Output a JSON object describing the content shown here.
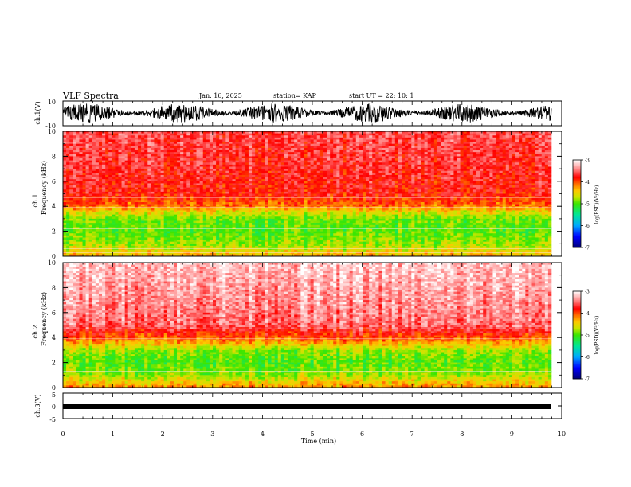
{
  "header": {
    "title": "VLF Spectra",
    "date": "Jan. 16, 2025",
    "station": "station= KAP",
    "start": "start  UT =   22: 10: 1"
  },
  "colors": {
    "spec_low": "#0000aa",
    "spec_mid": "#00ee00",
    "spec_high": "#ff0000",
    "spec_max": "#ffffff",
    "trace": "#000000"
  },
  "chart_data": [
    {
      "type": "line",
      "ylabel": "ch.1(V)",
      "ylim": [
        -10,
        10
      ],
      "yticks": [
        "10",
        "-10"
      ],
      "xlim": [
        0,
        10
      ],
      "description_of_signal": "noise"
    },
    {
      "type": "heatmap",
      "ylabel": "ch.1",
      "ylabel2": "Frequency  (kHz)",
      "ylim": [
        0,
        10
      ],
      "yticks": [
        "0",
        "2",
        "4",
        "6",
        "8",
        "10"
      ],
      "xlim": [
        0,
        10
      ],
      "colorbar": {
        "label": "log(PSD)(V²/Hz)",
        "range": [
          -7,
          -3
        ],
        "ticks": [
          "-3",
          "-4",
          "-5",
          "-6",
          "-7"
        ]
      },
      "band_profile": [
        {
          "f": 0.0,
          "v": -4.3
        },
        {
          "f": 0.5,
          "v": -4.6
        },
        {
          "f": 1.0,
          "v": -4.8
        },
        {
          "f": 2.0,
          "v": -5.0
        },
        {
          "f": 3.0,
          "v": -4.9
        },
        {
          "f": 3.6,
          "v": -4.5
        },
        {
          "f": 4.0,
          "v": -4.1
        },
        {
          "f": 5.0,
          "v": -3.8
        },
        {
          "f": 10.0,
          "v": -3.6
        }
      ]
    },
    {
      "type": "heatmap",
      "ylabel": "ch.2",
      "ylabel2": "Frequency  (kHz)",
      "ylim": [
        0,
        10
      ],
      "yticks": [
        "0",
        "2",
        "4",
        "6",
        "8",
        "10"
      ],
      "xlim": [
        0,
        10
      ],
      "colorbar": {
        "label": "log(PSD)(V²/Hz)",
        "range": [
          -7,
          -3
        ],
        "ticks": [
          "-3",
          "-4",
          "-5",
          "-6",
          "-7"
        ]
      },
      "band_profile": [
        {
          "f": 0.0,
          "v": -4.2
        },
        {
          "f": 0.5,
          "v": -4.5
        },
        {
          "f": 1.0,
          "v": -4.8
        },
        {
          "f": 2.0,
          "v": -5.0
        },
        {
          "f": 3.0,
          "v": -4.8
        },
        {
          "f": 3.6,
          "v": -4.3
        },
        {
          "f": 4.0,
          "v": -4.0
        },
        {
          "f": 5.0,
          "v": -3.5
        },
        {
          "f": 10.0,
          "v": -3.2
        }
      ]
    },
    {
      "type": "line",
      "ylabel": "ch.3(V)",
      "ylim": [
        -5,
        5
      ],
      "yticks": [
        "5",
        "0",
        "-5"
      ],
      "xlim": [
        0,
        10
      ]
    }
  ],
  "xaxis": {
    "label": "Time  (min)",
    "ticks": [
      "0",
      "1",
      "2",
      "3",
      "4",
      "5",
      "6",
      "7",
      "8",
      "9",
      "10"
    ]
  }
}
